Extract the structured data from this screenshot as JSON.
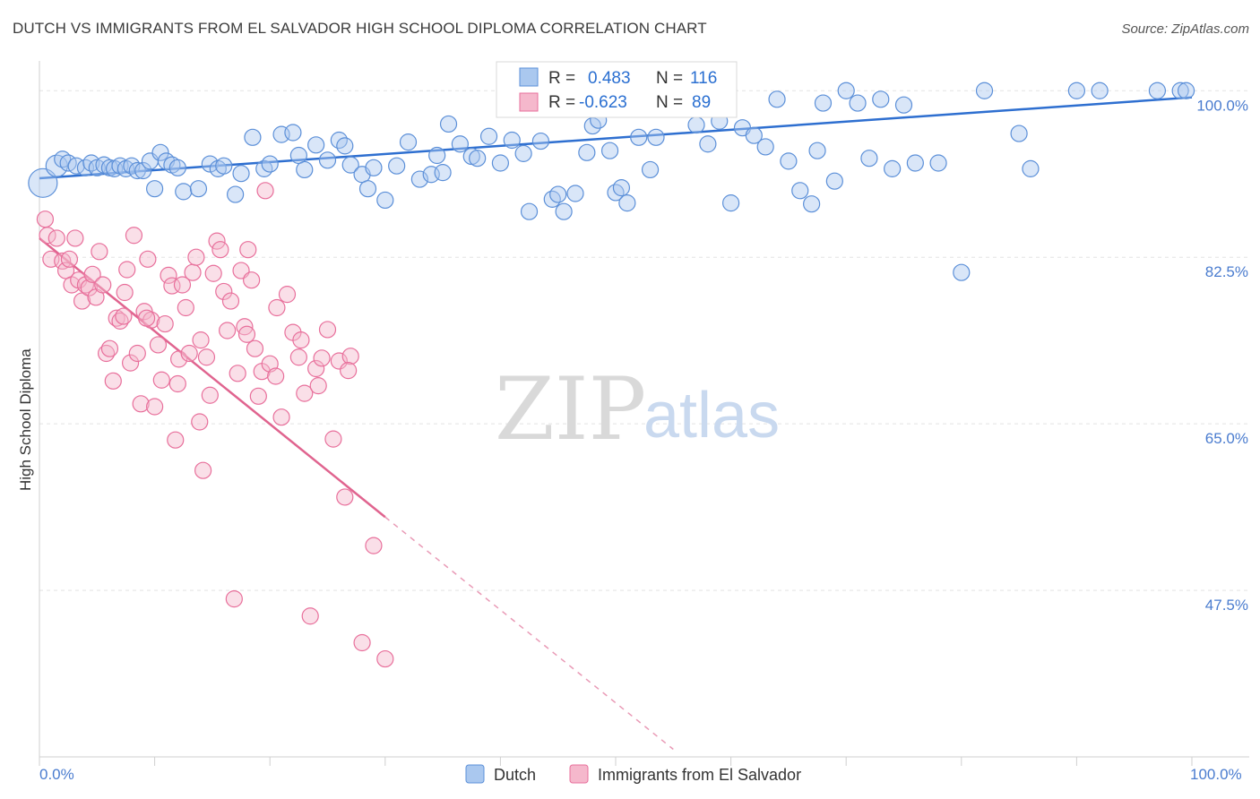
{
  "title": "DUTCH VS IMMIGRANTS FROM EL SALVADOR HIGH SCHOOL DIPLOMA CORRELATION CHART",
  "source": "Source: ZipAtlas.com",
  "watermark": {
    "zip": "ZIP",
    "atlas": "atlas"
  },
  "colors": {
    "blue": "#5b8fd8",
    "blue_fill": "#aac8ef",
    "pink": "#e86f9b",
    "pink_fill": "#f5b8cc",
    "blue_text": "#2a6fd1",
    "grid": "#e3e3e3"
  },
  "legend_box": [
    {
      "r_label": "R =",
      "r_value": "0.483",
      "n_label": "N =",
      "n_value": "116"
    },
    {
      "r_label": "R =",
      "r_value": "-0.623",
      "n_label": "N =",
      "n_value": "89"
    }
  ],
  "bottom_legend": [
    "Dutch",
    "Immigrants from El Salvador"
  ],
  "chart_data": {
    "type": "scatter",
    "title": "DUTCH VS IMMIGRANTS FROM EL SALVADOR HIGH SCHOOL DIPLOMA CORRELATION CHART",
    "xlabel": "",
    "ylabel": "High School Diploma",
    "xlim": [
      0,
      100
    ],
    "ylim": [
      30,
      102
    ],
    "x_tick_labels": [
      "0.0%",
      "100.0%"
    ],
    "y_ticks": [
      100,
      82.5,
      65,
      47.5
    ],
    "y_tick_labels": [
      "100.0%",
      "82.5%",
      "65.0%",
      "47.5%"
    ],
    "grid": true,
    "legend_position": "top-center",
    "series": [
      {
        "name": "Dutch",
        "color": "#5b8fd8",
        "trend": {
          "x0": 0,
          "y0": 90.8,
          "x1": 100,
          "y1": 99.3
        },
        "points": [
          [
            0.3,
            90.3
          ],
          [
            1.5,
            92.1
          ],
          [
            2,
            92.8
          ],
          [
            2.5,
            92.4
          ],
          [
            3.2,
            92.1
          ],
          [
            4,
            91.9
          ],
          [
            4.5,
            92.4
          ],
          [
            5,
            91.9
          ],
          [
            5.6,
            92.2
          ],
          [
            6.1,
            91.9
          ],
          [
            6.5,
            91.8
          ],
          [
            7,
            92.1
          ],
          [
            7.5,
            91.8
          ],
          [
            8,
            92.1
          ],
          [
            8.5,
            91.6
          ],
          [
            9,
            91.6
          ],
          [
            9.6,
            92.6
          ],
          [
            10.5,
            93.5
          ],
          [
            11,
            92.6
          ],
          [
            11.5,
            92.2
          ],
          [
            12,
            91.9
          ],
          [
            10,
            89.7
          ],
          [
            12.5,
            89.4
          ],
          [
            13.8,
            89.7
          ],
          [
            14.8,
            92.3
          ],
          [
            15.5,
            91.8
          ],
          [
            16,
            92.1
          ],
          [
            17,
            89.1
          ],
          [
            17.5,
            91.3
          ],
          [
            18.5,
            95.1
          ],
          [
            19.5,
            91.8
          ],
          [
            20,
            92.3
          ],
          [
            21,
            95.4
          ],
          [
            22,
            95.6
          ],
          [
            22.5,
            93.2
          ],
          [
            23,
            91.7
          ],
          [
            24,
            94.3
          ],
          [
            25,
            92.7
          ],
          [
            26,
            94.8
          ],
          [
            26.5,
            94.2
          ],
          [
            27,
            92.2
          ],
          [
            28,
            91.2
          ],
          [
            28.5,
            89.7
          ],
          [
            29,
            91.9
          ],
          [
            30,
            88.5
          ],
          [
            31,
            92.1
          ],
          [
            32,
            94.6
          ],
          [
            33,
            90.7
          ],
          [
            34,
            91.2
          ],
          [
            34.5,
            93.2
          ],
          [
            35,
            91.4
          ],
          [
            35.5,
            96.5
          ],
          [
            36.5,
            94.4
          ],
          [
            37.5,
            93.1
          ],
          [
            38,
            92.9
          ],
          [
            39,
            95.2
          ],
          [
            40,
            92.4
          ],
          [
            41,
            94.8
          ],
          [
            42,
            93.4
          ],
          [
            42.5,
            87.3
          ],
          [
            43.5,
            94.7
          ],
          [
            44.5,
            88.6
          ],
          [
            45,
            89.1
          ],
          [
            45.5,
            87.3
          ],
          [
            46.5,
            89.2
          ],
          [
            47.5,
            93.5
          ],
          [
            48,
            96.3
          ],
          [
            48.5,
            96.9
          ],
          [
            49.5,
            93.7
          ],
          [
            50,
            89.3
          ],
          [
            50.5,
            89.8
          ],
          [
            51,
            88.2
          ],
          [
            52,
            95.1
          ],
          [
            53,
            91.7
          ],
          [
            53.5,
            95.1
          ],
          [
            55,
            100
          ],
          [
            56,
            98.2
          ],
          [
            57,
            96.4
          ],
          [
            58,
            94.4
          ],
          [
            59,
            96.8
          ],
          [
            60,
            88.2
          ],
          [
            61,
            96.1
          ],
          [
            62,
            95.3
          ],
          [
            63,
            94.1
          ],
          [
            64,
            99.1
          ],
          [
            65,
            92.6
          ],
          [
            66,
            89.5
          ],
          [
            67,
            88.1
          ],
          [
            67.5,
            93.7
          ],
          [
            68,
            98.7
          ],
          [
            69,
            90.5
          ],
          [
            70,
            100
          ],
          [
            71,
            98.7
          ],
          [
            72,
            92.9
          ],
          [
            73,
            99.1
          ],
          [
            74,
            91.8
          ],
          [
            75,
            98.5
          ],
          [
            76,
            92.4
          ],
          [
            78,
            92.4
          ],
          [
            80,
            80.9
          ],
          [
            82,
            100
          ],
          [
            85,
            95.5
          ],
          [
            86,
            91.8
          ],
          [
            90,
            100
          ],
          [
            92,
            100
          ],
          [
            97,
            100
          ],
          [
            99,
            100
          ],
          [
            99.5,
            100
          ]
        ],
        "sizes": {
          "0.3": "large",
          "1.5": "medium"
        }
      },
      {
        "name": "Immigrants from El Salvador",
        "color": "#e86f9b",
        "trend": {
          "x0": 0,
          "y0": 84.5,
          "x1": 30,
          "y1": 55.2
        },
        "trend_dashed": {
          "x0": 30,
          "y0": 55.2,
          "x1": 55,
          "y1": 30.8
        },
        "points": [
          [
            0.5,
            86.5
          ],
          [
            0.7,
            84.8
          ],
          [
            1,
            82.3
          ],
          [
            1.5,
            84.5
          ],
          [
            2,
            82.1
          ],
          [
            2.3,
            81.1
          ],
          [
            2.6,
            82.3
          ],
          [
            2.8,
            79.6
          ],
          [
            3.1,
            84.5
          ],
          [
            3.4,
            80.1
          ],
          [
            3.7,
            77.9
          ],
          [
            4,
            79.6
          ],
          [
            4.3,
            79.3
          ],
          [
            4.6,
            80.7
          ],
          [
            4.9,
            78.3
          ],
          [
            5.2,
            83.1
          ],
          [
            5.5,
            79.6
          ],
          [
            5.8,
            72.4
          ],
          [
            6.1,
            72.9
          ],
          [
            6.4,
            69.5
          ],
          [
            6.7,
            76.1
          ],
          [
            7,
            75.8
          ],
          [
            7.3,
            76.3
          ],
          [
            7.6,
            81.2
          ],
          [
            7.9,
            71.4
          ],
          [
            8.2,
            84.8
          ],
          [
            8.5,
            72.4
          ],
          [
            8.8,
            67.1
          ],
          [
            9.1,
            76.8
          ],
          [
            9.4,
            82.3
          ],
          [
            9.7,
            75.9
          ],
          [
            10,
            66.8
          ],
          [
            10.3,
            73.3
          ],
          [
            10.6,
            69.6
          ],
          [
            10.9,
            75.5
          ],
          [
            11.2,
            80.6
          ],
          [
            11.5,
            79.5
          ],
          [
            11.8,
            63.3
          ],
          [
            12.1,
            71.8
          ],
          [
            12.4,
            79.6
          ],
          [
            12.7,
            77.2
          ],
          [
            13,
            72.4
          ],
          [
            13.3,
            80.9
          ],
          [
            13.6,
            82.5
          ],
          [
            13.9,
            65.2
          ],
          [
            14.2,
            60.1
          ],
          [
            14.5,
            72.0
          ],
          [
            14.8,
            68.0
          ],
          [
            15.1,
            80.8
          ],
          [
            15.4,
            84.2
          ],
          [
            15.7,
            83.3
          ],
          [
            16,
            78.9
          ],
          [
            16.3,
            74.8
          ],
          [
            16.6,
            77.9
          ],
          [
            16.9,
            46.6
          ],
          [
            17.2,
            70.3
          ],
          [
            17.5,
            81.1
          ],
          [
            17.8,
            75.2
          ],
          [
            18.1,
            83.3
          ],
          [
            18.4,
            80.1
          ],
          [
            18.7,
            72.9
          ],
          [
            19,
            67.9
          ],
          [
            19.3,
            70.5
          ],
          [
            19.6,
            89.5
          ],
          [
            20,
            71.3
          ],
          [
            20.5,
            70.0
          ],
          [
            21,
            65.7
          ],
          [
            21.5,
            78.6
          ],
          [
            22,
            74.6
          ],
          [
            22.5,
            72.0
          ],
          [
            23,
            68.2
          ],
          [
            23.5,
            44.8
          ],
          [
            24,
            70.8
          ],
          [
            24.5,
            71.9
          ],
          [
            25,
            74.9
          ],
          [
            25.5,
            63.4
          ],
          [
            26,
            71.6
          ],
          [
            26.5,
            57.3
          ],
          [
            27,
            72.1
          ],
          [
            28,
            42.0
          ],
          [
            29,
            52.2
          ],
          [
            30,
            40.3
          ],
          [
            9.3,
            76.1
          ],
          [
            12,
            69.2
          ],
          [
            14,
            73.8
          ],
          [
            18,
            74.4
          ],
          [
            20.6,
            77.2
          ],
          [
            22.7,
            73.8
          ],
          [
            24.2,
            69.0
          ],
          [
            26.8,
            70.6
          ],
          [
            7.4,
            78.8
          ]
        ]
      }
    ]
  }
}
